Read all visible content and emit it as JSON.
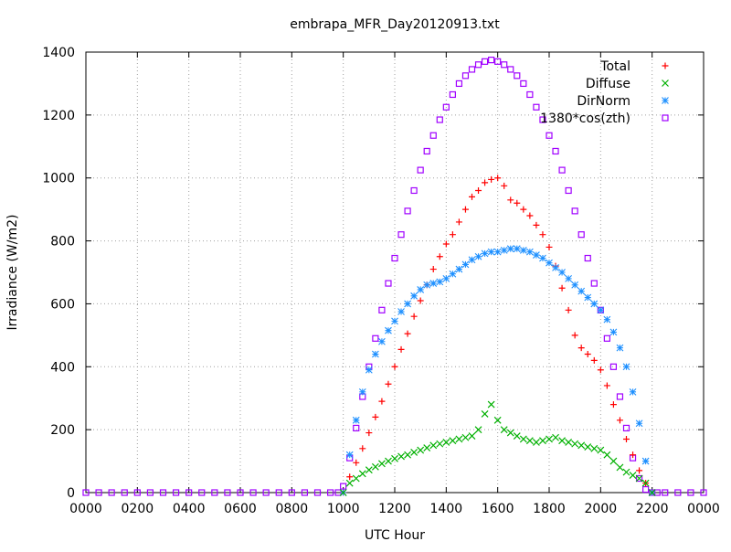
{
  "chart_data": {
    "type": "scatter",
    "title": "embrapa_MFR_Day20120913.txt",
    "xlabel": "UTC Hour",
    "ylabel": "Irradiance (W/m2)",
    "xlim": [
      0,
      24
    ],
    "ylim": [
      0,
      1400
    ],
    "x_ticks": [
      0,
      2,
      4,
      6,
      8,
      10,
      12,
      14,
      16,
      18,
      20,
      22,
      24
    ],
    "x_tick_labels": [
      "0000",
      "0200",
      "0400",
      "0600",
      "0800",
      "1000",
      "1200",
      "1400",
      "1600",
      "1800",
      "2000",
      "2200",
      "0000"
    ],
    "y_ticks": [
      0,
      200,
      400,
      600,
      800,
      1000,
      1200,
      1400
    ],
    "y_tick_labels": [
      "0",
      "200",
      "400",
      "600",
      "800",
      "1000",
      "1200",
      "1400"
    ],
    "grid": true,
    "legend_position": "top-right",
    "series": [
      {
        "name": "Total",
        "marker": "+",
        "color": "#ff0000",
        "x": [
          10.0,
          10.25,
          10.5,
          10.75,
          11.0,
          11.25,
          11.5,
          11.75,
          12.0,
          12.25,
          12.5,
          12.75,
          13.0,
          13.25,
          13.5,
          13.75,
          14.0,
          14.25,
          14.5,
          14.75,
          15.0,
          15.25,
          15.5,
          15.75,
          16.0,
          16.25,
          16.5,
          16.75,
          17.0,
          17.25,
          17.5,
          17.75,
          18.0,
          18.25,
          18.5,
          18.75,
          19.0,
          19.25,
          19.5,
          19.75,
          20.0,
          20.25,
          20.5,
          20.75,
          21.0,
          21.25,
          21.5,
          21.75,
          22.0
        ],
        "y": [
          0,
          50,
          95,
          140,
          190,
          240,
          290,
          345,
          400,
          455,
          505,
          560,
          610,
          660,
          710,
          750,
          790,
          820,
          860,
          900,
          940,
          960,
          985,
          995,
          1000,
          975,
          930,
          920,
          900,
          880,
          850,
          820,
          780,
          720,
          650,
          580,
          500,
          460,
          440,
          420,
          390,
          340,
          280,
          230,
          170,
          120,
          70,
          30,
          0
        ]
      },
      {
        "name": "Diffuse",
        "marker": "x",
        "color": "#00b000",
        "x": [
          10.0,
          10.25,
          10.5,
          10.75,
          11.0,
          11.25,
          11.5,
          11.75,
          12.0,
          12.25,
          12.5,
          12.75,
          13.0,
          13.25,
          13.5,
          13.75,
          14.0,
          14.25,
          14.5,
          14.75,
          15.0,
          15.25,
          15.5,
          15.75,
          16.0,
          16.25,
          16.5,
          16.75,
          17.0,
          17.25,
          17.5,
          17.75,
          18.0,
          18.25,
          18.5,
          18.75,
          19.0,
          19.25,
          19.5,
          19.75,
          20.0,
          20.25,
          20.5,
          20.75,
          21.0,
          21.25,
          21.5,
          21.75,
          22.0
        ],
        "y": [
          0,
          30,
          45,
          60,
          72,
          82,
          92,
          100,
          108,
          115,
          120,
          128,
          135,
          142,
          150,
          155,
          160,
          165,
          170,
          175,
          180,
          200,
          250,
          280,
          230,
          200,
          190,
          180,
          170,
          165,
          160,
          165,
          170,
          175,
          165,
          160,
          155,
          150,
          145,
          140,
          135,
          120,
          100,
          80,
          65,
          55,
          45,
          30,
          0
        ]
      },
      {
        "name": "DirNorm",
        "marker": "*",
        "color": "#1e90ff",
        "x": [
          10.0,
          10.25,
          10.5,
          10.75,
          11.0,
          11.25,
          11.5,
          11.75,
          12.0,
          12.25,
          12.5,
          12.75,
          13.0,
          13.25,
          13.5,
          13.75,
          14.0,
          14.25,
          14.5,
          14.75,
          15.0,
          15.25,
          15.5,
          15.75,
          16.0,
          16.25,
          16.5,
          16.75,
          17.0,
          17.25,
          17.5,
          17.75,
          18.0,
          18.25,
          18.5,
          18.75,
          19.0,
          19.25,
          19.5,
          19.75,
          20.0,
          20.25,
          20.5,
          20.75,
          21.0,
          21.25,
          21.5,
          21.75,
          22.0
        ],
        "y": [
          0,
          120,
          230,
          320,
          390,
          440,
          480,
          515,
          545,
          575,
          600,
          625,
          645,
          660,
          665,
          670,
          680,
          695,
          710,
          725,
          740,
          750,
          760,
          765,
          765,
          770,
          775,
          775,
          770,
          765,
          755,
          745,
          730,
          715,
          700,
          680,
          660,
          640,
          620,
          600,
          580,
          550,
          510,
          460,
          400,
          320,
          220,
          100,
          0
        ]
      },
      {
        "name": "1380*cos(zth)",
        "marker": "square",
        "color": "#a000ff",
        "x": [
          0.0,
          0.5,
          1.0,
          1.5,
          2.0,
          2.5,
          3.0,
          3.5,
          4.0,
          4.5,
          5.0,
          5.5,
          6.0,
          6.5,
          7.0,
          7.5,
          8.0,
          8.5,
          9.0,
          9.5,
          9.8,
          10.0,
          10.25,
          10.5,
          10.75,
          11.0,
          11.25,
          11.5,
          11.75,
          12.0,
          12.25,
          12.5,
          12.75,
          13.0,
          13.25,
          13.5,
          13.75,
          14.0,
          14.25,
          14.5,
          14.75,
          15.0,
          15.25,
          15.5,
          15.75,
          16.0,
          16.25,
          16.5,
          16.75,
          17.0,
          17.25,
          17.5,
          17.75,
          18.0,
          18.25,
          18.5,
          18.75,
          19.0,
          19.25,
          19.5,
          19.75,
          20.0,
          20.25,
          20.5,
          20.75,
          21.0,
          21.25,
          21.5,
          21.75,
          22.0,
          22.2,
          22.5,
          23.0,
          23.5,
          24.0
        ],
        "y": [
          0,
          0,
          0,
          0,
          0,
          0,
          0,
          0,
          0,
          0,
          0,
          0,
          0,
          0,
          0,
          0,
          0,
          0,
          0,
          0,
          0,
          20,
          110,
          205,
          305,
          400,
          490,
          580,
          665,
          745,
          820,
          895,
          960,
          1025,
          1085,
          1135,
          1185,
          1225,
          1265,
          1300,
          1325,
          1345,
          1360,
          1370,
          1375,
          1370,
          1360,
          1345,
          1325,
          1300,
          1265,
          1225,
          1185,
          1135,
          1085,
          1025,
          960,
          895,
          820,
          745,
          665,
          580,
          490,
          400,
          305,
          205,
          110,
          45,
          10,
          0,
          0,
          0,
          0,
          0,
          0
        ]
      }
    ]
  }
}
